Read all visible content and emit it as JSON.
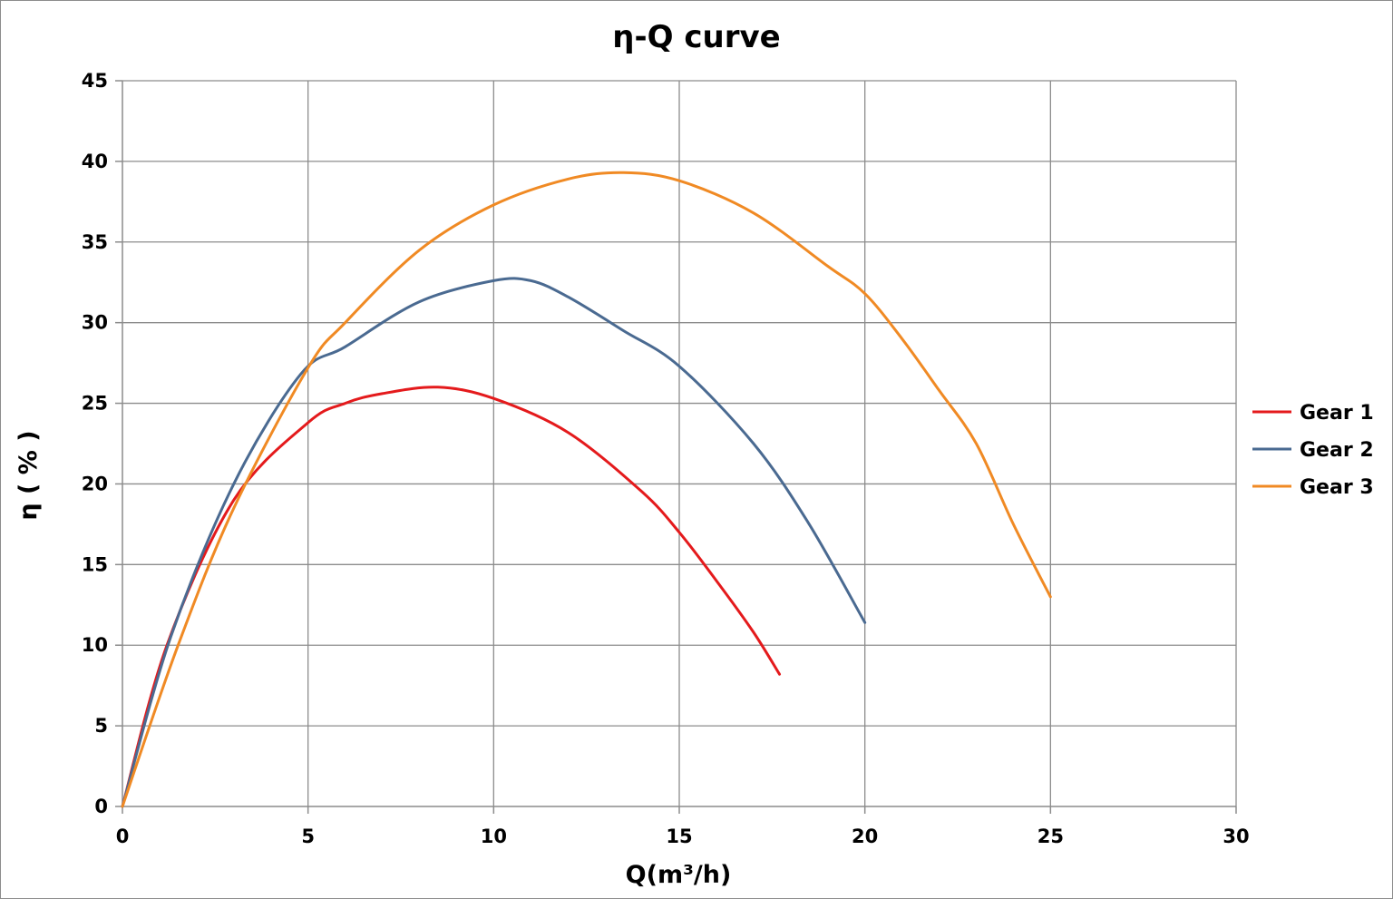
{
  "chart_data": {
    "type": "line",
    "title": "η-Q  curve",
    "xlabel": "Q(m³/h)",
    "ylabel": "η ( % )",
    "xlim": [
      0,
      30
    ],
    "ylim": [
      0,
      45
    ],
    "xticks": [
      0,
      5,
      10,
      15,
      20,
      25,
      30
    ],
    "yticks": [
      0,
      5,
      10,
      15,
      20,
      25,
      30,
      35,
      40,
      45
    ],
    "grid": true,
    "legend_position": "right",
    "series": [
      {
        "name": "Gear 1",
        "color": "#e41a1c",
        "x": [
          0,
          1.2,
          3,
          5,
          6,
          7,
          8.5,
          10,
          12,
          14,
          15,
          16,
          17,
          17.7
        ],
        "y": [
          0,
          10,
          19,
          23.8,
          25,
          25.6,
          26,
          25.3,
          23.2,
          19.5,
          17,
          14,
          10.8,
          8.2
        ]
      },
      {
        "name": "Gear 2",
        "color": "#4a6a91",
        "x": [
          0,
          1.3,
          3,
          4.8,
          6,
          8,
          10,
          11,
          12,
          13.5,
          15,
          17,
          18.5,
          20
        ],
        "y": [
          0,
          10.5,
          20,
          26.8,
          28.5,
          31.3,
          32.6,
          32.6,
          31.6,
          29.5,
          27.3,
          22.5,
          17.5,
          11.4
        ]
      },
      {
        "name": "Gear 3",
        "color": "#f08a24",
        "x": [
          0,
          1.5,
          3,
          5,
          6,
          8,
          10,
          12,
          13.5,
          15,
          17,
          19,
          20,
          21,
          22,
          23,
          24,
          25
        ],
        "y": [
          0,
          10,
          18.5,
          27.2,
          30,
          34.5,
          37.3,
          38.9,
          39.3,
          38.8,
          36.8,
          33.5,
          31.8,
          29,
          25.8,
          22.5,
          17.5,
          13
        ]
      }
    ]
  }
}
